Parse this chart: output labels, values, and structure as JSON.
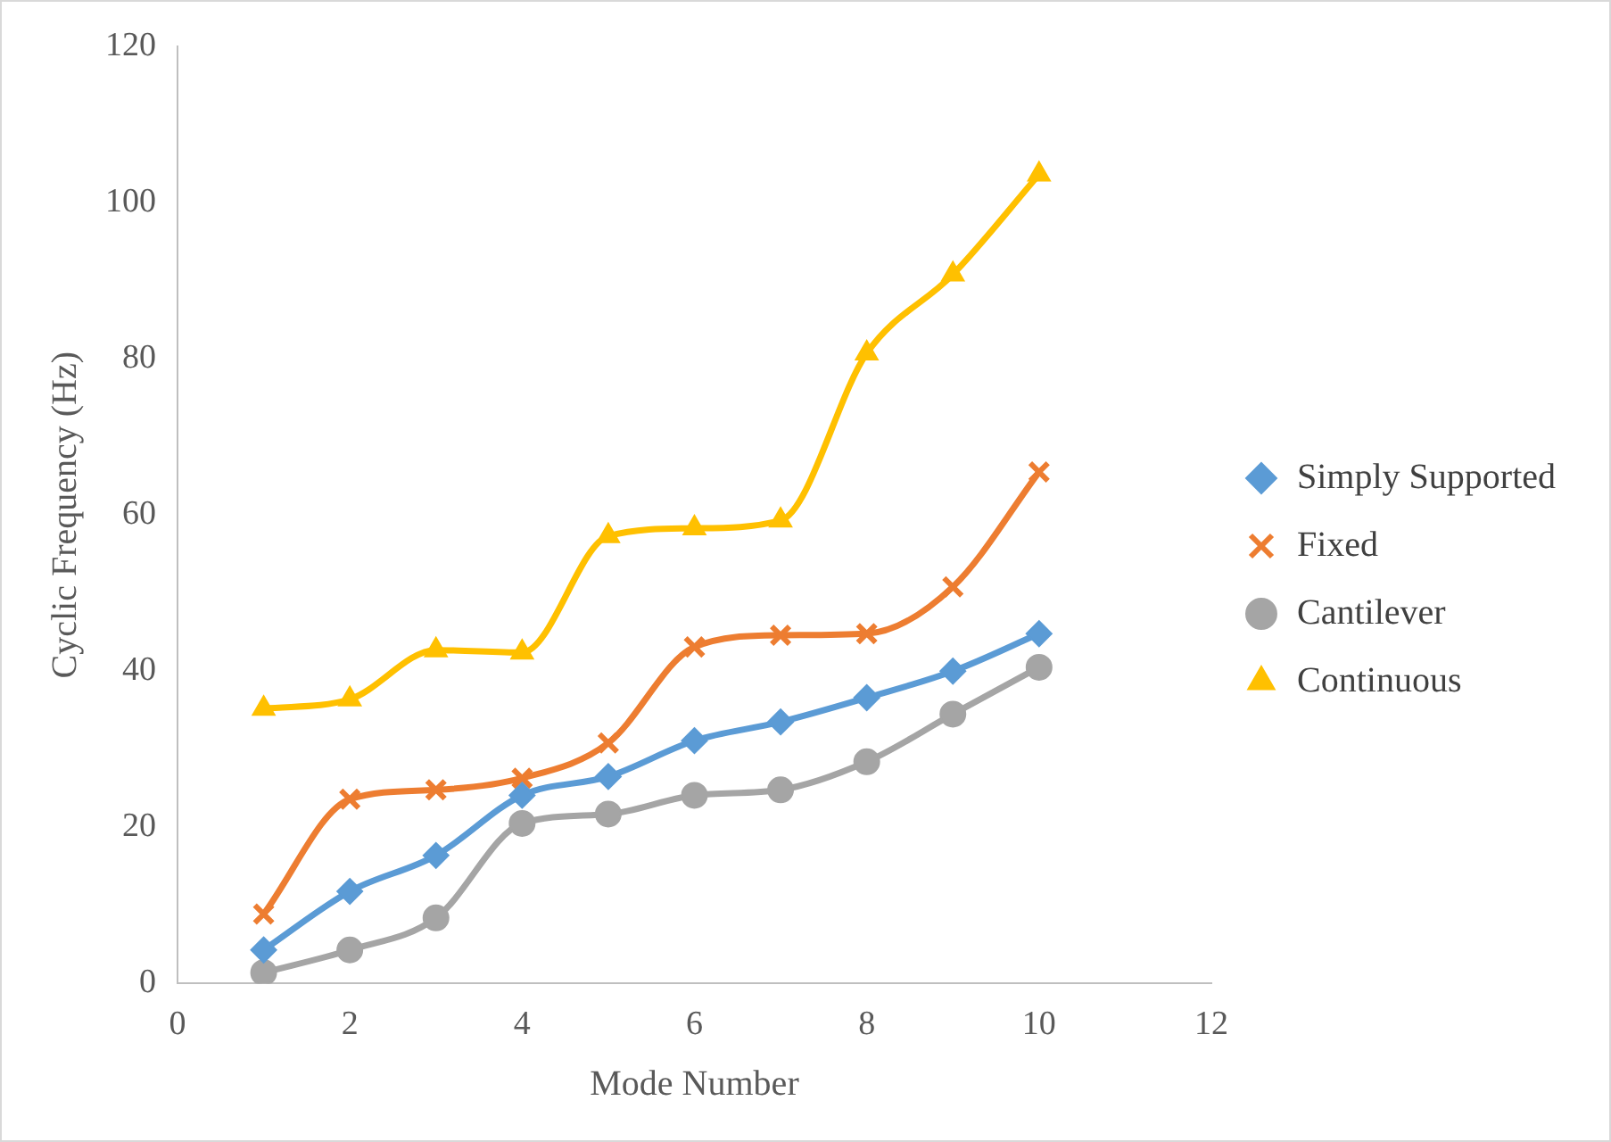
{
  "chart_data": {
    "type": "line",
    "xlabel": "Mode Number",
    "ylabel": "Cyclic Frequency (Hz)",
    "x": [
      1,
      2,
      3,
      4,
      5,
      6,
      7,
      8,
      9,
      10
    ],
    "xlim": [
      0,
      12
    ],
    "xticks": [
      0,
      2,
      4,
      6,
      8,
      10,
      12
    ],
    "ylim": [
      0,
      120
    ],
    "yticks": [
      0,
      20,
      40,
      60,
      80,
      100,
      120
    ],
    "grid": false,
    "legend": "right",
    "series": [
      {
        "name": "Simply Supported",
        "color": "#5b9bd5",
        "marker": "diamond",
        "values": [
          4.3,
          11.8,
          16.4,
          24.1,
          26.5,
          31.1,
          33.5,
          36.6,
          40,
          44.8
        ]
      },
      {
        "name": "Fixed",
        "color": "#ed7d31",
        "marker": "cross",
        "values": [
          8.9,
          23.6,
          24.8,
          26.3,
          30.8,
          43.1,
          44.6,
          44.8,
          50.8,
          65.5
        ]
      },
      {
        "name": "Cantilever",
        "color": "#a5a5a5",
        "marker": "circle",
        "values": [
          1.4,
          4.3,
          8.4,
          20.5,
          21.7,
          24.1,
          24.8,
          28.4,
          34.5,
          40.5
        ]
      },
      {
        "name": "Continuous",
        "color": "#ffc000",
        "marker": "triangle",
        "values": [
          35.2,
          36.4,
          42.7,
          42.4,
          57.3,
          58.3,
          59.3,
          80.7,
          90.8,
          103.6
        ]
      }
    ]
  }
}
